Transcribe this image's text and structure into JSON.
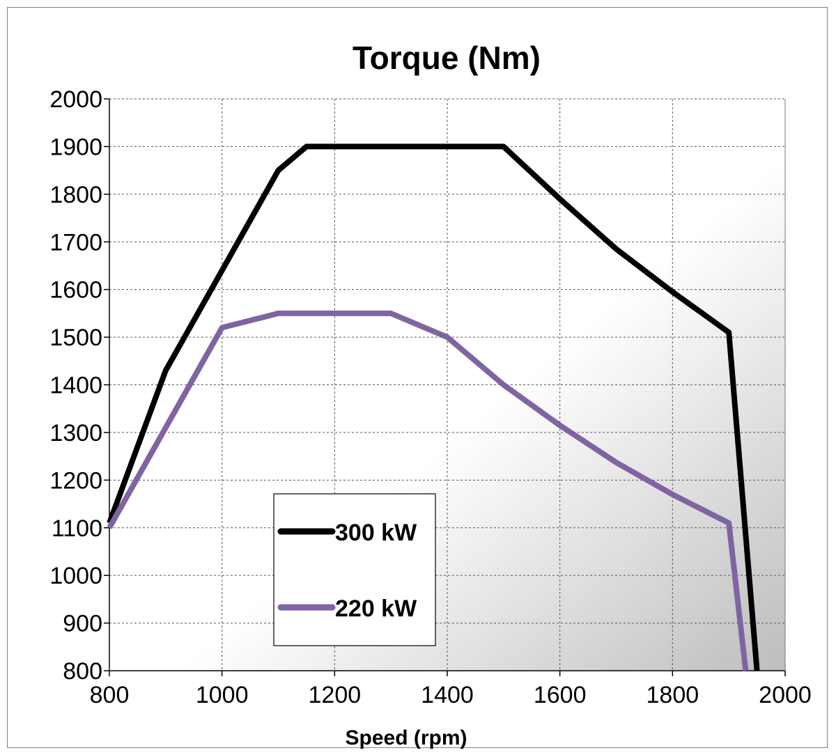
{
  "chart_data": {
    "type": "line",
    "title": "Torque (Nm)",
    "xlabel": "Speed (rpm)",
    "ylabel": "",
    "xlim": [
      800,
      2000
    ],
    "ylim": [
      800,
      2000
    ],
    "xticks": [
      800,
      1000,
      1200,
      1400,
      1600,
      1800,
      2000
    ],
    "yticks": [
      800,
      900,
      1000,
      1100,
      1200,
      1300,
      1400,
      1500,
      1600,
      1700,
      1800,
      1900,
      2000
    ],
    "grid": true,
    "legend_position": "bottom-center",
    "series": [
      {
        "name": "300 kW",
        "color": "#000000",
        "x": [
          800,
          900,
          1000,
          1100,
          1150,
          1200,
          1300,
          1400,
          1500,
          1600,
          1700,
          1800,
          1900,
          1950
        ],
        "y": [
          1110,
          1430,
          1640,
          1850,
          1900,
          1900,
          1900,
          1900,
          1900,
          1790,
          1685,
          1595,
          1510,
          800
        ]
      },
      {
        "name": "220 kW",
        "color": "#8064a2",
        "x": [
          800,
          900,
          1000,
          1100,
          1200,
          1300,
          1400,
          1500,
          1600,
          1700,
          1800,
          1900,
          1930
        ],
        "y": [
          1100,
          1310,
          1520,
          1550,
          1550,
          1550,
          1500,
          1400,
          1315,
          1237,
          1170,
          1110,
          800
        ]
      }
    ]
  }
}
